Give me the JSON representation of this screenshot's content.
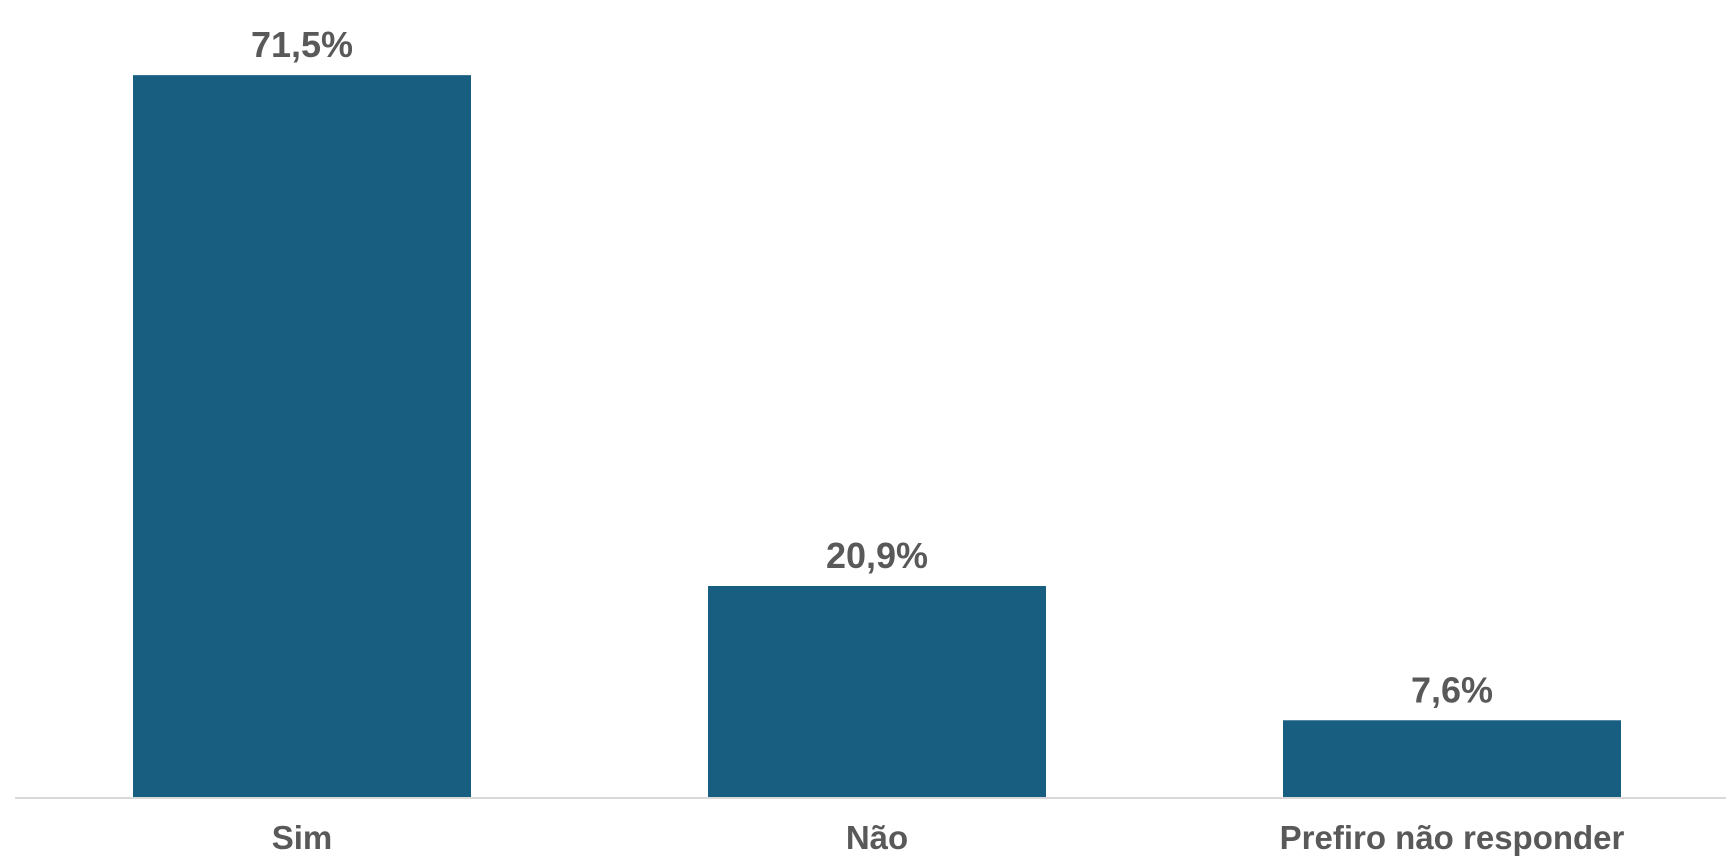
{
  "chart_data": {
    "type": "bar",
    "categories": [
      "Sim",
      "Não",
      "Prefiro não responder"
    ],
    "values": [
      71.5,
      20.9,
      7.6
    ],
    "data_labels": [
      "71,5%",
      "20,9%",
      "7,6%"
    ],
    "unit": "%",
    "title": "",
    "xlabel": "",
    "ylabel": "",
    "ylim": [
      0,
      73
    ],
    "grid": false,
    "legend": "none",
    "bar_color": "#175e81",
    "label_color": "#595959",
    "axis_color": "#d9d9d9"
  }
}
